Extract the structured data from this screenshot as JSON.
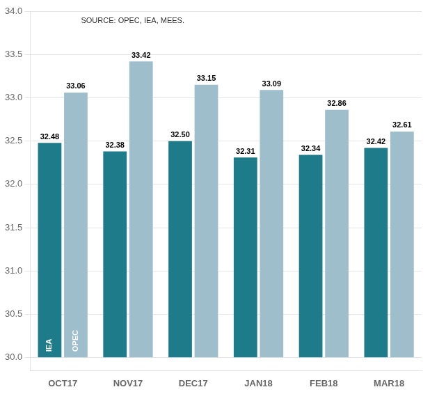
{
  "chart_data": {
    "type": "bar",
    "categories": [
      "OCT17",
      "NOV17",
      "DEC17",
      "JAN18",
      "FEB18",
      "MAR18"
    ],
    "series": [
      {
        "name": "IEA",
        "color": "#1e7b8a",
        "values": [
          32.48,
          32.38,
          32.5,
          32.31,
          32.34,
          32.42
        ],
        "value_labels": [
          "32.48",
          "32.38",
          "32.50",
          "32.31",
          "32.34",
          "32.42"
        ]
      },
      {
        "name": "OPEC",
        "color": "#9fbecb",
        "values": [
          33.06,
          33.42,
          33.15,
          33.09,
          32.86,
          32.61
        ]
      }
    ],
    "baseline": 30.0,
    "ylim": [
      29.85,
      34.0
    ],
    "yticks": [
      {
        "value": 30.0,
        "label": "30.0"
      },
      30.5,
      {
        "value": 31.0,
        "label": "31.0"
      },
      31.5,
      {
        "value": 32.0,
        "label": "32.0"
      },
      32.5,
      {
        "value": 33.0,
        "label": "33.0"
      },
      33.5,
      {
        "value": 34.0,
        "label": "34.0"
      }
    ],
    "annotation": "SOURCE: OPEC, IEA, MEES.",
    "data_labels": true,
    "grid": true
  }
}
